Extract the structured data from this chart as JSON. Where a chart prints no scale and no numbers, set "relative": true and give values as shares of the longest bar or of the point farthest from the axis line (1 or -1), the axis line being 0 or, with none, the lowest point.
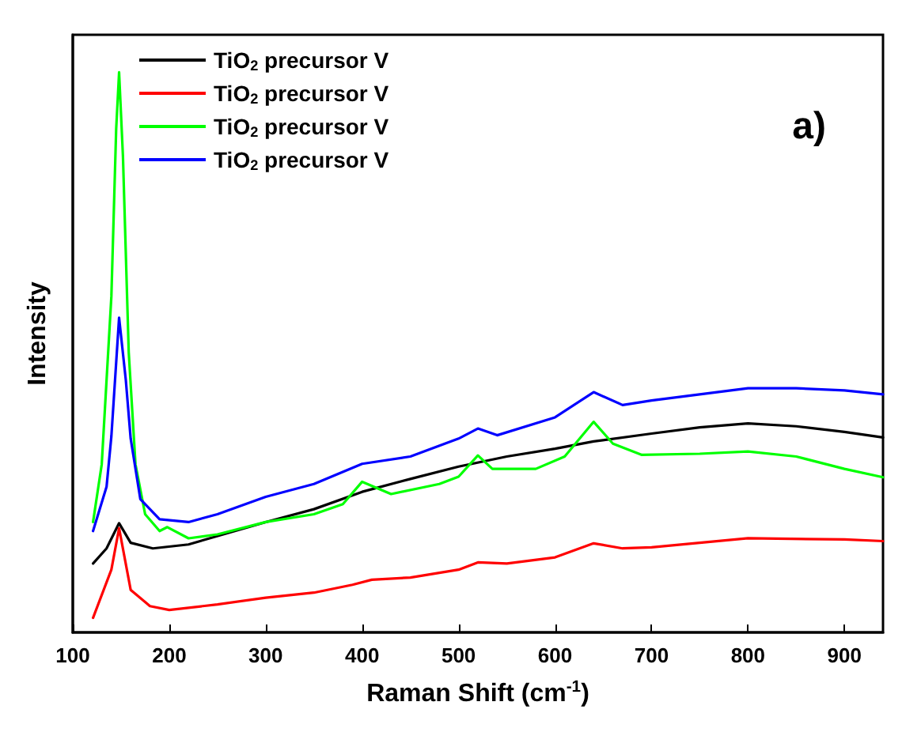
{
  "chart_data": {
    "type": "line",
    "relative": true,
    "xlabel": "Raman Shift (cm$^{-1}$)",
    "ylabel": "Intensity",
    "annotations": [
      "a)"
    ],
    "xlim": [
      100,
      940
    ],
    "xticks": [
      100,
      200,
      300,
      400,
      500,
      600,
      700,
      800,
      900
    ],
    "grid": false,
    "legend": "top left",
    "line_style": "solid",
    "marker": "none",
    "tick_labels": "x",
    "series": [
      {
        "name": "TiO$_{2}$ precursor V",
        "color": "#000000",
        "x": [
          121,
          135,
          148,
          160,
          183,
          220,
          300,
          350,
          400,
          450,
          500,
          550,
          600,
          640,
          700,
          750,
          800,
          850,
          900,
          940
        ],
        "values": [
          0.123,
          0.15,
          0.195,
          0.16,
          0.15,
          0.157,
          0.197,
          0.22,
          0.251,
          0.274,
          0.296,
          0.314,
          0.328,
          0.341,
          0.355,
          0.366,
          0.373,
          0.368,
          0.358,
          0.348
        ]
      },
      {
        "name": "TiO$_{2}$ precursor V",
        "color": "#ff0000",
        "x": [
          121,
          140,
          148,
          160,
          180,
          200,
          250,
          300,
          350,
          390,
          410,
          450,
          500,
          520,
          550,
          600,
          640,
          670,
          700,
          800,
          900,
          940
        ],
        "values": [
          0.026,
          0.112,
          0.186,
          0.076,
          0.047,
          0.04,
          0.05,
          0.062,
          0.071,
          0.085,
          0.094,
          0.098,
          0.112,
          0.125,
          0.123,
          0.134,
          0.159,
          0.15,
          0.152,
          0.168,
          0.166,
          0.163
        ]
      },
      {
        "name": "TiO$_{2}$ precursor V",
        "color": "#00ff00",
        "x": [
          121,
          130,
          140,
          145,
          148,
          152,
          158,
          165,
          175,
          190,
          198,
          220,
          250,
          300,
          350,
          380,
          400,
          430,
          480,
          500,
          520,
          535,
          580,
          610,
          640,
          660,
          690,
          750,
          800,
          850,
          900,
          940
        ],
        "values": [
          0.197,
          0.3,
          0.6,
          0.9,
          1.0,
          0.85,
          0.5,
          0.3,
          0.211,
          0.181,
          0.188,
          0.168,
          0.175,
          0.197,
          0.211,
          0.229,
          0.269,
          0.247,
          0.265,
          0.278,
          0.316,
          0.292,
          0.292,
          0.314,
          0.376,
          0.337,
          0.317,
          0.319,
          0.323,
          0.314,
          0.292,
          0.277
        ]
      },
      {
        "name": "TiO$_{2}$ precursor V",
        "color": "#0000ff",
        "x": [
          121,
          135,
          140,
          148,
          155,
          160,
          170,
          190,
          220,
          250,
          300,
          350,
          400,
          450,
          500,
          520,
          540,
          600,
          640,
          670,
          700,
          800,
          850,
          900,
          940
        ],
        "values": [
          0.181,
          0.26,
          0.35,
          0.562,
          0.45,
          0.346,
          0.238,
          0.202,
          0.197,
          0.211,
          0.242,
          0.265,
          0.301,
          0.314,
          0.346,
          0.364,
          0.352,
          0.384,
          0.429,
          0.406,
          0.414,
          0.436,
          0.436,
          0.432,
          0.425
        ]
      }
    ]
  }
}
